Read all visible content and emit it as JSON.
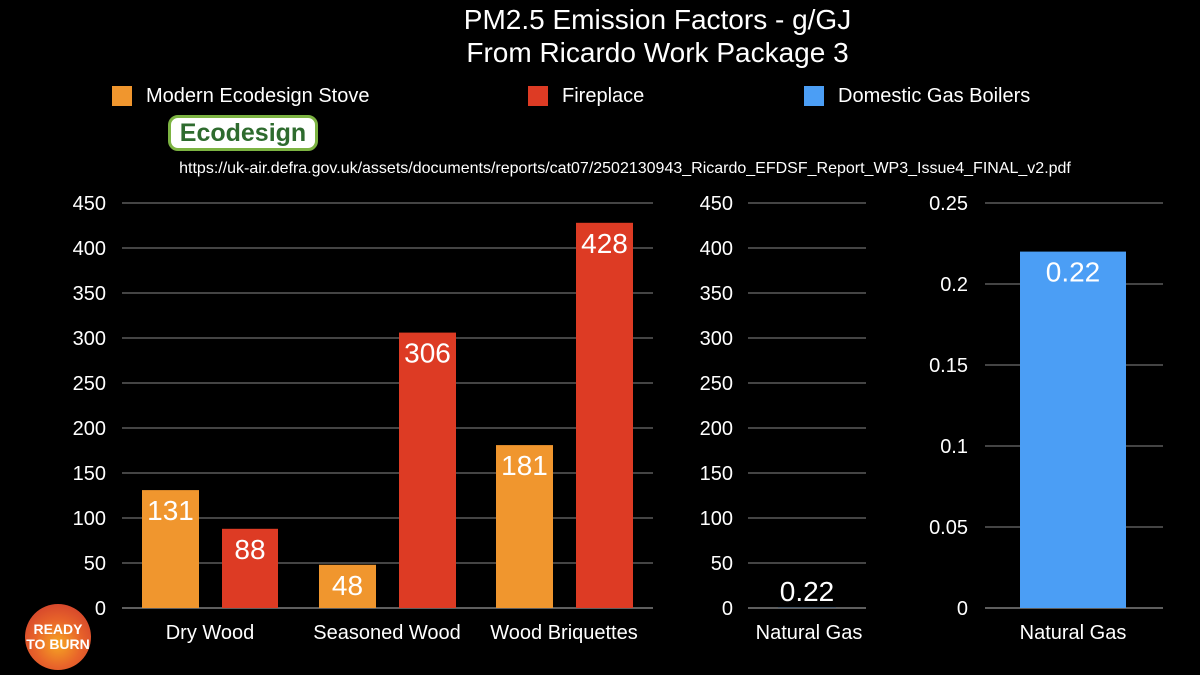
{
  "title_line1": "PM2.5 Emission Factors - g/GJ",
  "title_line2": "From Ricardo Work Package 3",
  "legend": [
    {
      "label": "Modern Ecodesign Stove",
      "color": "#f0962e"
    },
    {
      "label": "Fireplace",
      "color": "#dd3b24"
    },
    {
      "label": "Domestic Gas Boilers",
      "color": "#4b9ef5"
    }
  ],
  "ecodesign_badge": "Ecodesign",
  "source_url": "https://uk-air.defra.gov.uk/assets/documents/reports/cat07/2502130943_Ricardo_EFDSF_Report_WP3_Issue4_FINAL_v2.pdf",
  "logo_text_line1": "READY",
  "logo_text_line2": "TO BURN",
  "chart_data": [
    {
      "type": "bar",
      "title": "",
      "categories": [
        "Dry Wood",
        "Seasoned Wood",
        "Wood Briquettes"
      ],
      "series": [
        {
          "name": "Modern Ecodesign Stove",
          "color": "#f0962e",
          "values": [
            131,
            48,
            181
          ],
          "labels": [
            "131",
            "48",
            "181"
          ]
        },
        {
          "name": "Fireplace",
          "color": "#dd3b24",
          "values": [
            88,
            306,
            428
          ],
          "labels": [
            "88",
            "306",
            "428"
          ]
        }
      ],
      "ylim": [
        0,
        450
      ],
      "yticks": [
        0,
        50,
        100,
        150,
        200,
        250,
        300,
        350,
        400,
        450
      ],
      "ytick_labels": [
        "0",
        "50",
        "100",
        "150",
        "200",
        "250",
        "300",
        "350",
        "400",
        "450"
      ],
      "grid": true
    },
    {
      "type": "bar",
      "title": "",
      "categories": [
        "Natural Gas"
      ],
      "series": [
        {
          "name": "Domestic Gas Boilers",
          "color": "#4b9ef5",
          "values": [
            0.22
          ],
          "labels": [
            "0.22"
          ]
        }
      ],
      "ylim": [
        0,
        450
      ],
      "yticks": [
        0,
        50,
        100,
        150,
        200,
        250,
        300,
        350,
        400,
        450
      ],
      "ytick_labels": [
        "0",
        "50",
        "100",
        "150",
        "200",
        "250",
        "300",
        "350",
        "400",
        "450"
      ],
      "grid": true
    },
    {
      "type": "bar",
      "title": "",
      "categories": [
        "Natural Gas"
      ],
      "series": [
        {
          "name": "Domestic Gas Boilers",
          "color": "#4b9ef5",
          "values": [
            0.22
          ],
          "labels": [
            "0.22"
          ]
        }
      ],
      "ylim": [
        0,
        0.25
      ],
      "yticks": [
        0,
        0.05,
        0.1,
        0.15,
        0.2,
        0.25
      ],
      "ytick_labels": [
        "0",
        "0.05",
        "0.1",
        "0.15",
        "0.2",
        "0.25"
      ],
      "grid": true
    }
  ]
}
